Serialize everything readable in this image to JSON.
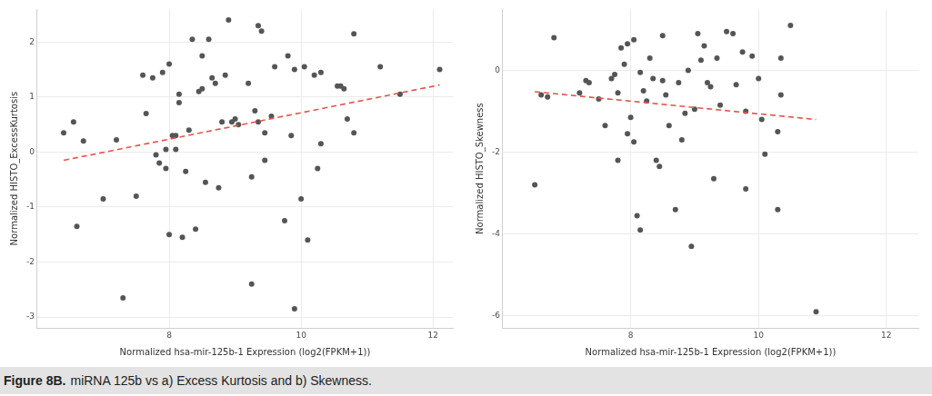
{
  "caption_label": "Figure 8B.",
  "caption": "miRNA 125b vs a) Excess Kurtosis and b) Skewness.",
  "chart_data": [
    {
      "type": "scatter",
      "x_label": "Normalized hsa-mir-125b-1 Expression (log2(FPKM+1))",
      "y_label": "Normalized HISTO_ExcessKurtosis",
      "color": "#555555",
      "marker": "circle",
      "grid": true,
      "xlim": [
        6.0,
        12.3
      ],
      "xticks": [
        8,
        10,
        12
      ],
      "ylim": [
        -3.2,
        2.6
      ],
      "yticks": [
        -3,
        -2,
        -1,
        0,
        1,
        2
      ],
      "x": [
        6.4,
        6.55,
        6.6,
        6.7,
        7.0,
        7.2,
        7.3,
        7.5,
        7.6,
        7.65,
        7.75,
        7.8,
        7.85,
        7.9,
        7.95,
        7.95,
        8.0,
        8.0,
        8.05,
        8.1,
        8.1,
        8.15,
        8.15,
        8.2,
        8.25,
        8.3,
        8.35,
        8.4,
        8.45,
        8.5,
        8.5,
        8.55,
        8.6,
        8.65,
        8.7,
        8.75,
        8.8,
        8.85,
        8.9,
        8.95,
        9.0,
        9.05,
        9.2,
        9.25,
        9.25,
        9.3,
        9.35,
        9.35,
        9.4,
        9.45,
        9.45,
        9.55,
        9.6,
        9.75,
        9.8,
        9.85,
        9.9,
        9.9,
        10.0,
        10.05,
        10.1,
        10.2,
        10.25,
        10.3,
        10.3,
        10.55,
        10.6,
        10.65,
        10.7,
        10.8,
        10.8,
        11.2,
        11.5,
        12.1
      ],
      "values": [
        0.35,
        0.55,
        -1.35,
        0.2,
        -0.85,
        0.22,
        -2.65,
        -0.8,
        1.4,
        0.7,
        1.35,
        -0.05,
        -0.2,
        1.45,
        -0.3,
        0.05,
        1.6,
        -1.5,
        0.3,
        0.3,
        0.05,
        1.05,
        0.9,
        -1.55,
        -0.35,
        0.4,
        2.05,
        -1.4,
        1.1,
        1.75,
        1.15,
        -0.55,
        2.05,
        1.35,
        1.25,
        -0.65,
        0.55,
        1.4,
        2.4,
        0.55,
        0.6,
        0.5,
        1.25,
        -0.45,
        -2.4,
        0.75,
        2.3,
        0.55,
        2.2,
        -0.15,
        0.35,
        0.65,
        1.55,
        -1.25,
        1.75,
        0.3,
        1.5,
        -2.85,
        -0.85,
        1.55,
        -1.6,
        1.4,
        -0.3,
        1.45,
        0.15,
        1.2,
        1.2,
        1.15,
        0.6,
        2.15,
        0.35,
        1.55,
        1.05,
        1.5
      ],
      "trend": {
        "type": "line",
        "color": "#e8534a",
        "line_style": "dashed",
        "x": [
          6.4,
          12.1
        ],
        "values": [
          -0.15,
          1.22
        ]
      }
    },
    {
      "type": "scatter",
      "x_label": "Normalized hsa-mir-125b-1 Expression (log2(FPKM+1))",
      "y_label": "Normalized HISTO_Skewness",
      "color": "#555555",
      "marker": "circle",
      "grid": true,
      "xlim": [
        6.0,
        12.5
      ],
      "xticks": [
        8,
        10,
        12
      ],
      "ylim": [
        -6.3,
        1.5
      ],
      "yticks": [
        -6,
        -4,
        -2,
        0
      ],
      "x": [
        6.5,
        6.6,
        6.7,
        6.8,
        7.2,
        7.3,
        7.35,
        7.5,
        7.6,
        7.7,
        7.75,
        7.8,
        7.8,
        7.85,
        7.9,
        7.95,
        7.95,
        8.0,
        8.05,
        8.05,
        8.1,
        8.15,
        8.15,
        8.2,
        8.25,
        8.3,
        8.35,
        8.4,
        8.45,
        8.5,
        8.5,
        8.55,
        8.6,
        8.7,
        8.75,
        8.8,
        8.85,
        8.9,
        8.95,
        9.0,
        9.05,
        9.1,
        9.15,
        9.2,
        9.25,
        9.3,
        9.35,
        9.4,
        9.5,
        9.6,
        9.65,
        9.75,
        9.8,
        9.8,
        9.9,
        10.0,
        10.05,
        10.1,
        10.3,
        10.3,
        10.35,
        10.35,
        10.5,
        10.9
      ],
      "values": [
        -2.8,
        -0.6,
        -0.65,
        0.8,
        -0.55,
        -0.25,
        -0.3,
        -0.7,
        -1.35,
        -0.2,
        -0.1,
        -2.2,
        -0.55,
        0.55,
        0.15,
        0.65,
        -1.55,
        -1.15,
        -1.75,
        0.75,
        -3.55,
        -0.05,
        -3.9,
        -0.5,
        -0.75,
        0.3,
        -0.2,
        -2.2,
        -2.35,
        0.85,
        -0.25,
        -0.6,
        -1.35,
        -3.4,
        -0.3,
        -1.7,
        -1.05,
        0.0,
        -4.3,
        -0.95,
        0.9,
        0.25,
        0.6,
        -0.3,
        -0.4,
        -2.65,
        0.3,
        -0.85,
        0.95,
        0.9,
        -0.35,
        0.45,
        -1.0,
        -2.9,
        0.35,
        -0.2,
        -1.2,
        -2.05,
        -1.5,
        -3.4,
        0.3,
        -0.6,
        1.1,
        -5.9
      ],
      "trend": {
        "type": "line",
        "color": "#e8534a",
        "line_style": "dashed",
        "x": [
          6.5,
          10.9
        ],
        "values": [
          -0.52,
          -1.2
        ]
      }
    }
  ]
}
